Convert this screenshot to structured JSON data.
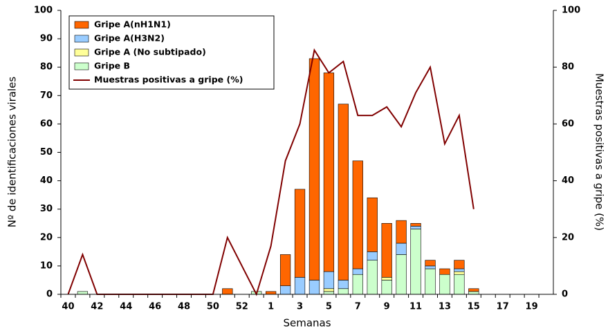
{
  "chart_data": {
    "type": "bar",
    "x_label": "Semanas",
    "y_label": "Nº de identificaciones virales",
    "y2_label": "Muestras positivas a gripe (%)",
    "categories": [
      "40",
      null,
      "42",
      null,
      "44",
      null,
      "46",
      null,
      "48",
      null,
      "50",
      null,
      "52",
      null,
      "1",
      null,
      "3",
      null,
      "5",
      null,
      "7",
      null,
      "9",
      null,
      "11",
      null,
      "13",
      null,
      "15",
      null,
      "17",
      null,
      "19",
      null
    ],
    "ylim": [
      0,
      100
    ],
    "yticks": [
      0,
      10,
      20,
      30,
      40,
      50,
      60,
      70,
      80,
      90,
      100
    ],
    "y2lim": [
      0,
      100
    ],
    "y2ticks": [
      0,
      20,
      40,
      60,
      80,
      100
    ],
    "stacked": true,
    "legend": "top-left",
    "grid": false,
    "series": [
      {
        "name": "Gripe A(nH1N1)",
        "color": "#ff6600",
        "values": [
          0,
          0,
          0,
          0,
          0,
          0,
          0,
          0,
          0,
          0,
          0,
          2,
          0,
          0,
          1,
          11,
          31,
          78,
          70,
          62,
          38,
          19,
          19,
          8,
          1,
          2,
          2,
          3,
          1,
          0,
          0,
          0,
          0,
          0
        ]
      },
      {
        "name": "Gripe A(H3N2)",
        "color": "#99ccff",
        "values": [
          0,
          0,
          0,
          0,
          0,
          0,
          0,
          0,
          0,
          0,
          0,
          0,
          0,
          0,
          0,
          3,
          6,
          5,
          6,
          3,
          2,
          3,
          0,
          4,
          1,
          1,
          0,
          1,
          0,
          0,
          0,
          0,
          0,
          0
        ]
      },
      {
        "name": "Gripe A (No subtipado)",
        "color": "#ffff99",
        "values": [
          0,
          0,
          0,
          0,
          0,
          0,
          0,
          0,
          0,
          0,
          0,
          0,
          0,
          0,
          0,
          0,
          0,
          0,
          1,
          0,
          0,
          0,
          1,
          0,
          0,
          0,
          0,
          1,
          0,
          0,
          0,
          0,
          0,
          0
        ]
      },
      {
        "name": "Gripe B",
        "color": "#ccffcc",
        "values": [
          0,
          1,
          0,
          0,
          0,
          0,
          0,
          0,
          0,
          0,
          0,
          0,
          0,
          1,
          0,
          0,
          0,
          0,
          1,
          2,
          7,
          12,
          5,
          14,
          23,
          9,
          7,
          7,
          1,
          0,
          0,
          0,
          0,
          0
        ]
      },
      {
        "name": "Muestras positivas a gripe (%)",
        "color": "#800000",
        "type": "line",
        "axis": "y2",
        "values": [
          0,
          14,
          0,
          0,
          0,
          0,
          0,
          0,
          0,
          0,
          0,
          20,
          10,
          0,
          17,
          47,
          60,
          86,
          78,
          82,
          63,
          63,
          66,
          59,
          71,
          80,
          53,
          63,
          30,
          null,
          null,
          null,
          null,
          null
        ]
      }
    ]
  }
}
